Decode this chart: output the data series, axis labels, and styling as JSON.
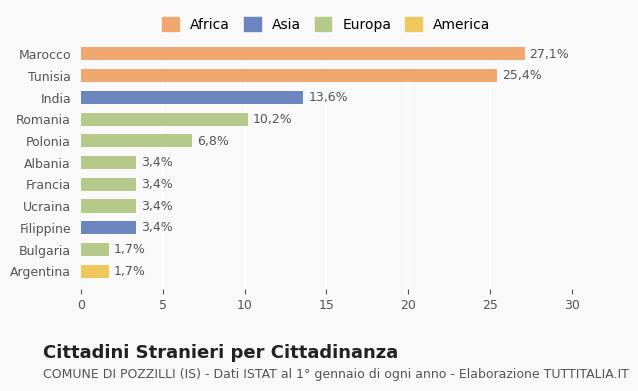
{
  "categories": [
    "Argentina",
    "Bulgaria",
    "Filippine",
    "Ucraina",
    "Francia",
    "Albania",
    "Polonia",
    "Romania",
    "India",
    "Tunisia",
    "Marocco"
  ],
  "values": [
    1.7,
    1.7,
    3.4,
    3.4,
    3.4,
    3.4,
    6.8,
    10.2,
    13.6,
    25.4,
    27.1
  ],
  "labels": [
    "1,7%",
    "1,7%",
    "3,4%",
    "3,4%",
    "3,4%",
    "3,4%",
    "6,8%",
    "10,2%",
    "13,6%",
    "25,4%",
    "27,1%"
  ],
  "colors": [
    "#f0c75a",
    "#b5c98a",
    "#6b86bf",
    "#b5c98a",
    "#b5c98a",
    "#b5c98a",
    "#b5c98a",
    "#b5c98a",
    "#6b86bf",
    "#f0a870",
    "#f0a870"
  ],
  "legend_labels": [
    "Africa",
    "Asia",
    "Europa",
    "America"
  ],
  "legend_colors": [
    "#f0a870",
    "#6b86bf",
    "#b5c98a",
    "#f0c75a"
  ],
  "xlim": [
    0,
    30
  ],
  "xticks": [
    0,
    5,
    10,
    15,
    20,
    25,
    30
  ],
  "title": "Cittadini Stranieri per Cittadinanza",
  "subtitle": "COMUNE DI POZZILLI (IS) - Dati ISTAT al 1° gennaio di ogni anno - Elaborazione TUTTITALIA.IT",
  "bg_color": "#f9f9f9",
  "bar_height": 0.6,
  "title_fontsize": 13,
  "subtitle_fontsize": 9,
  "label_fontsize": 9,
  "tick_fontsize": 9
}
